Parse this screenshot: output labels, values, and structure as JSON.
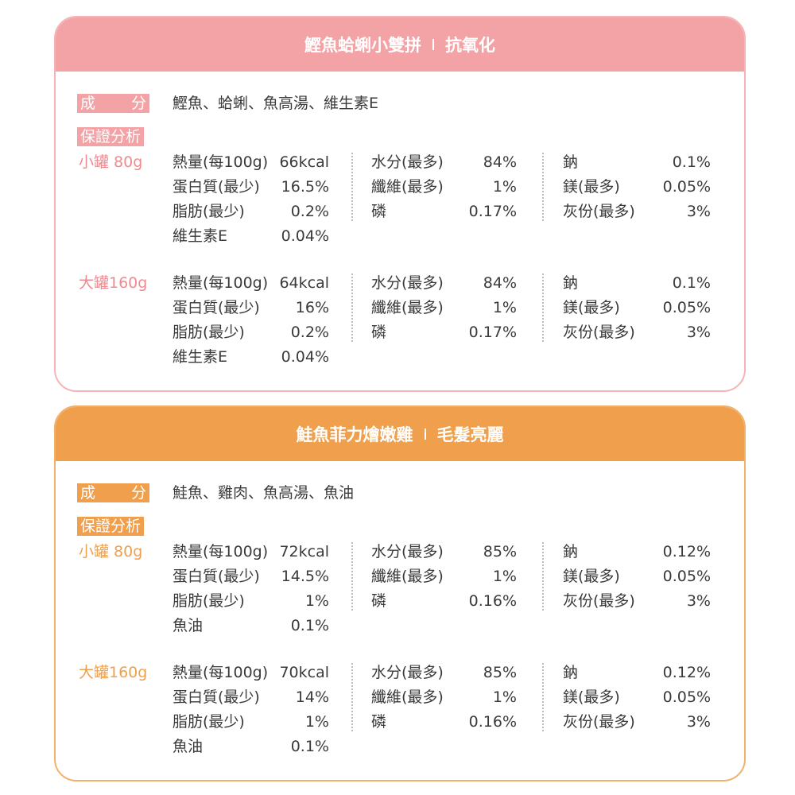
{
  "cards": [
    {
      "title": "鰹魚蛤蜊小雙拼",
      "tagline": "抗氧化",
      "ingredients_label": "成分",
      "ingredients": "鰹魚、蛤蜊、魚高湯、維生素E",
      "analysis_label": "保證分析",
      "sizes": [
        {
          "label": "小罐 80g",
          "columns": [
            [
              [
                "熱量(每100g)",
                "66kcal"
              ],
              [
                "蛋白質(最少)",
                "16.5%"
              ],
              [
                "脂肪(最少)",
                "0.2%"
              ],
              [
                "維生素E",
                "0.04%"
              ]
            ],
            [
              [
                "水分(最多)",
                "84%"
              ],
              [
                "纖維(最多)",
                "1%"
              ],
              [
                "磷",
                "0.17%"
              ]
            ],
            [
              [
                "鈉",
                "0.1%"
              ],
              [
                "鎂(最多)",
                "0.05%"
              ],
              [
                "灰份(最多)",
                "3%"
              ]
            ]
          ]
        },
        {
          "label": "大罐160g",
          "columns": [
            [
              [
                "熱量(每100g)",
                "64kcal"
              ],
              [
                "蛋白質(最少)",
                "16%"
              ],
              [
                "脂肪(最少)",
                "0.2%"
              ],
              [
                "維生素E",
                "0.04%"
              ]
            ],
            [
              [
                "水分(最多)",
                "84%"
              ],
              [
                "纖維(最多)",
                "1%"
              ],
              [
                "磷",
                "0.17%"
              ]
            ],
            [
              [
                "鈉",
                "0.1%"
              ],
              [
                "鎂(最多)",
                "0.05%"
              ],
              [
                "灰份(最多)",
                "3%"
              ]
            ]
          ]
        }
      ]
    },
    {
      "title": "鮭魚菲力燴嫩雞",
      "tagline": "毛髮亮麗",
      "ingredients_label": "成分",
      "ingredients": "鮭魚、雞肉、魚高湯、魚油",
      "analysis_label": "保證分析",
      "sizes": [
        {
          "label": "小罐 80g",
          "columns": [
            [
              [
                "熱量(每100g)",
                "72kcal"
              ],
              [
                "蛋白質(最少)",
                "14.5%"
              ],
              [
                "脂肪(最少)",
                "1%"
              ],
              [
                "魚油",
                "0.1%"
              ]
            ],
            [
              [
                "水分(最多)",
                "85%"
              ],
              [
                "纖維(最多)",
                "1%"
              ],
              [
                "磷",
                "0.16%"
              ]
            ],
            [
              [
                "鈉",
                "0.12%"
              ],
              [
                "鎂(最多)",
                "0.05%"
              ],
              [
                "灰份(最多)",
                "3%"
              ]
            ]
          ]
        },
        {
          "label": "大罐160g",
          "columns": [
            [
              [
                "熱量(每100g)",
                "70kcal"
              ],
              [
                "蛋白質(最少)",
                "14%"
              ],
              [
                "脂肪(最少)",
                "1%"
              ],
              [
                "魚油",
                "0.1%"
              ]
            ],
            [
              [
                "水分(最多)",
                "85%"
              ],
              [
                "纖維(最多)",
                "1%"
              ],
              [
                "磷",
                "0.16%"
              ]
            ],
            [
              [
                "鈉",
                "0.12%"
              ],
              [
                "鎂(最多)",
                "0.05%"
              ],
              [
                "灰份(最多)",
                "3%"
              ]
            ]
          ]
        }
      ]
    }
  ]
}
